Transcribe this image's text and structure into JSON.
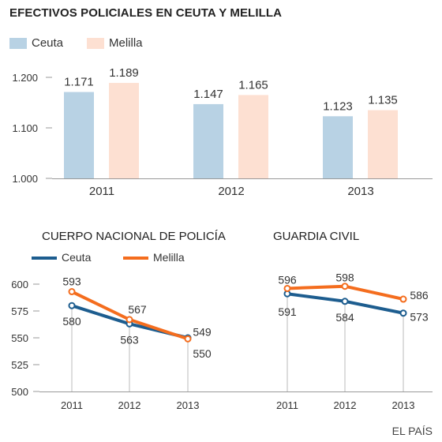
{
  "title": "EFECTIVOS POLICIALES EN CEUTA Y MELILLA",
  "credit": "EL PAÍS",
  "colors": {
    "ceuta_bar": "#b8d2e4",
    "melilla_bar": "#fde0d2",
    "ceuta_line": "#1d5d8f",
    "melilla_line": "#f46d1e",
    "axis": "#999999",
    "text": "#333333"
  },
  "legend_top": {
    "ceuta": "Ceuta",
    "melilla": "Melilla"
  },
  "legend_bottom": {
    "ceuta": "Ceuta",
    "melilla": "Melilla"
  },
  "chart_data": [
    {
      "type": "bar",
      "title": "EFECTIVOS POLICIALES EN CEUTA Y MELILLA",
      "categories": [
        "2011",
        "2012",
        "2013"
      ],
      "series": [
        {
          "name": "Ceuta",
          "values": [
            1171,
            1147,
            1123
          ],
          "labels": [
            "1.171",
            "1.147",
            "1.123"
          ]
        },
        {
          "name": "Melilla",
          "values": [
            1189,
            1165,
            1135
          ],
          "labels": [
            "1.189",
            "1.165",
            "1.135"
          ]
        }
      ],
      "yticks": [
        1000,
        1100,
        1200
      ],
      "ytick_labels": [
        "1.000",
        "1.100",
        "1.200"
      ],
      "ylim": [
        1000,
        1200
      ],
      "xlabel": "",
      "ylabel": "",
      "legend": "top-left"
    },
    {
      "type": "line",
      "title": "CUERPO NACIONAL DE POLICÍA",
      "x": [
        "2011",
        "2012",
        "2013"
      ],
      "series": [
        {
          "name": "Ceuta",
          "values": [
            580,
            563,
            550
          ]
        },
        {
          "name": "Melilla",
          "values": [
            593,
            567,
            549
          ]
        }
      ],
      "yticks": [
        500,
        525,
        550,
        575,
        600
      ],
      "ylim": [
        500,
        600
      ],
      "xlabel": "",
      "ylabel": ""
    },
    {
      "type": "line",
      "title": "GUARDIA CIVIL",
      "x": [
        "2011",
        "2012",
        "2013"
      ],
      "series": [
        {
          "name": "Ceuta",
          "values": [
            591,
            584,
            573
          ]
        },
        {
          "name": "Melilla",
          "values": [
            596,
            598,
            586
          ]
        }
      ],
      "ylim": [
        500,
        600
      ],
      "xlabel": "",
      "ylabel": ""
    }
  ]
}
